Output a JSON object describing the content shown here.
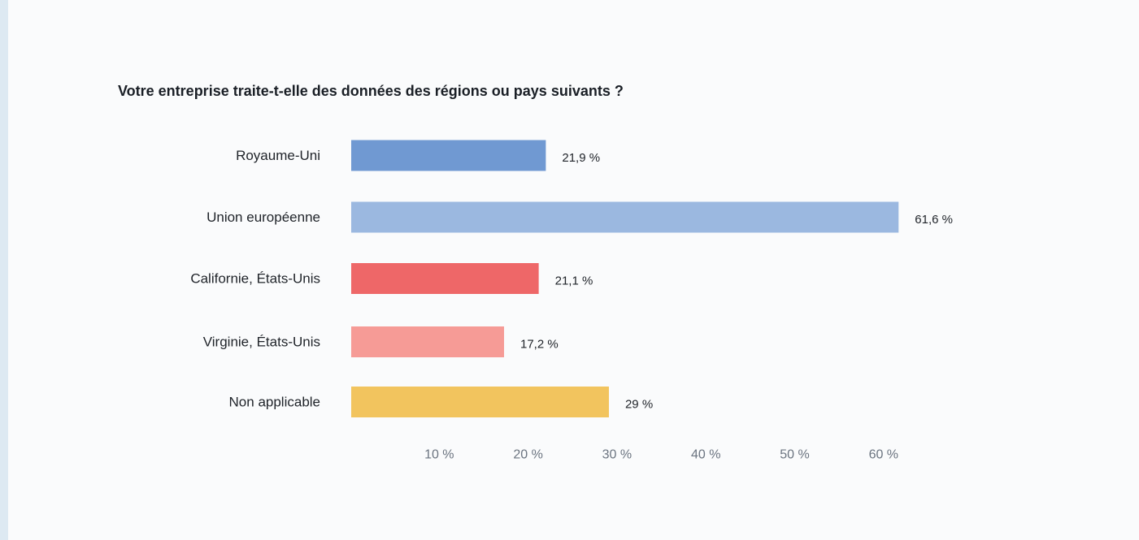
{
  "chart_data": {
    "type": "bar",
    "orientation": "horizontal",
    "title": "Votre entreprise traite-t-elle des données des régions ou pays suivants ?",
    "categories": [
      "Royaume-Uni",
      "Union européenne",
      "Californie, États-Unis",
      "Virginie, États-Unis",
      "Non applicable"
    ],
    "values": [
      21.9,
      61.6,
      21.1,
      17.2,
      29
    ],
    "value_labels": [
      "21,9 %",
      "61,6 %",
      "21,1 %",
      "17,2 %",
      "29 %"
    ],
    "colors": [
      "#7099d2",
      "#9bb8e0",
      "#ee6768",
      "#f69b96",
      "#f2c45e"
    ],
    "xticks": [
      10,
      20,
      30,
      40,
      50,
      60
    ],
    "xtick_labels": [
      "10 %",
      "20 %",
      "30 %",
      "40 %",
      "50 %",
      "60 %"
    ],
    "xlim": [
      0,
      62
    ],
    "grid": false,
    "legend": false
  }
}
